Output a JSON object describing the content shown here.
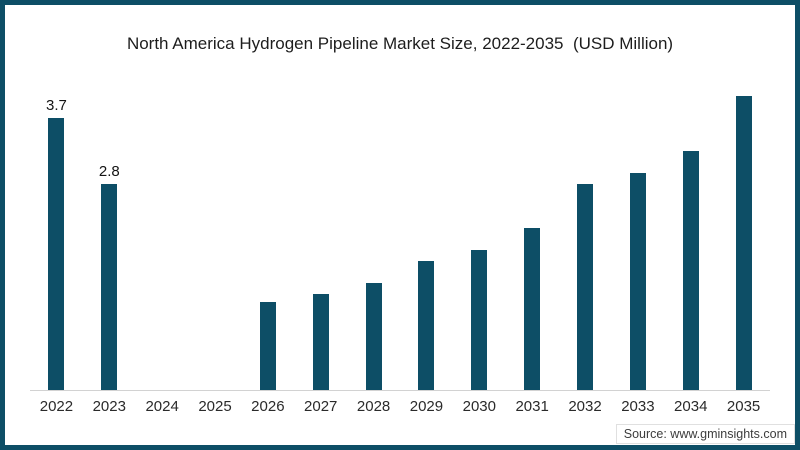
{
  "chart_data": {
    "type": "bar",
    "title": "North America Hydrogen Pipeline Market Size, 2022-2035  (USD Million)",
    "categories": [
      "2022",
      "2023",
      "2024",
      "2025",
      "2026",
      "2027",
      "2028",
      "2029",
      "2030",
      "2031",
      "2032",
      "2033",
      "2034",
      "2035"
    ],
    "values": [
      3.7,
      2.8,
      null,
      null,
      1.2,
      1.3,
      1.45,
      1.75,
      1.9,
      2.2,
      2.8,
      2.95,
      3.25,
      4.0
    ],
    "data_labels": [
      "3.7",
      "2.8",
      "",
      "",
      "",
      "",
      "",
      "",
      "",
      "",
      "",
      "",
      "",
      ""
    ],
    "bar_color": "#0d4e66",
    "xlabel": "",
    "ylabel": "",
    "ylim": [
      0,
      4.4
    ],
    "grid": false,
    "legend": false,
    "y_axis_visible": false,
    "x_axis_line_visible": true
  },
  "source": {
    "text": "Source: www.gminsights.com"
  },
  "frame": {
    "border_color": "#0d4e66",
    "background": "#ffffff"
  }
}
